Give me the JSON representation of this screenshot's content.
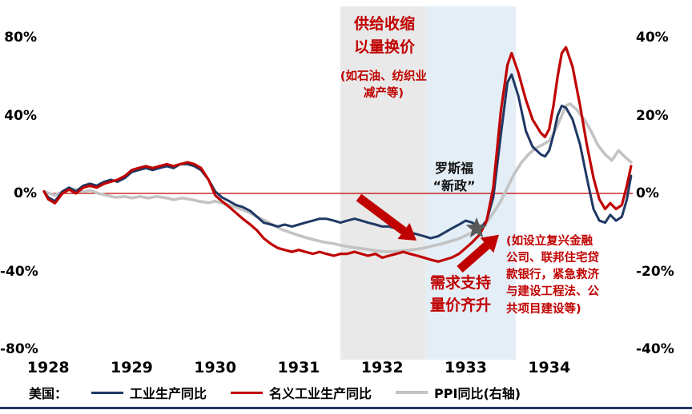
{
  "chart_data": {
    "type": "line",
    "x_axis": {
      "ticks": [
        1928,
        1929,
        1930,
        1931,
        1932,
        1933,
        1934
      ],
      "range": [
        1927.95,
        1935.0
      ]
    },
    "y_axis_left": {
      "tick_labels": [
        "80%",
        "40%",
        "0%",
        "-40%",
        "-80%"
      ],
      "tick_values": [
        80,
        40,
        0,
        -40,
        -80
      ],
      "range": [
        -80,
        80
      ]
    },
    "y_axis_right": {
      "tick_labels": [
        "40%",
        "20%",
        "0%",
        "-20%",
        "-40%"
      ],
      "tick_values": [
        40,
        20,
        0,
        -20,
        -40
      ],
      "range": [
        -40,
        40
      ]
    },
    "zero_line_color": "#C00000",
    "bands": [
      {
        "from": 1931.5,
        "to": 1932.52,
        "color": "#E9E9E9"
      },
      {
        "from": 1932.52,
        "to": 1933.6,
        "color": "#E4EEF6"
      }
    ],
    "series": [
      {
        "name": "工业生产同比",
        "axis": "left",
        "color": "#1F3864",
        "width": 3,
        "points": [
          [
            1927.95,
            1
          ],
          [
            1928,
            -2
          ],
          [
            1928.08,
            -4
          ],
          [
            1928.17,
            1
          ],
          [
            1928.25,
            3
          ],
          [
            1928.33,
            1
          ],
          [
            1928.42,
            4
          ],
          [
            1928.5,
            5
          ],
          [
            1928.58,
            4
          ],
          [
            1928.67,
            6
          ],
          [
            1928.75,
            7
          ],
          [
            1928.83,
            6
          ],
          [
            1928.92,
            8
          ],
          [
            1929,
            11
          ],
          [
            1929.08,
            12
          ],
          [
            1929.17,
            13
          ],
          [
            1929.25,
            12
          ],
          [
            1929.33,
            13
          ],
          [
            1929.42,
            14
          ],
          [
            1929.5,
            13
          ],
          [
            1929.58,
            15
          ],
          [
            1929.67,
            15
          ],
          [
            1929.75,
            14
          ],
          [
            1929.83,
            12
          ],
          [
            1929.92,
            7
          ],
          [
            1930,
            1
          ],
          [
            1930.08,
            -2
          ],
          [
            1930.17,
            -4
          ],
          [
            1930.25,
            -6
          ],
          [
            1930.33,
            -7
          ],
          [
            1930.42,
            -9
          ],
          [
            1930.5,
            -12
          ],
          [
            1930.58,
            -15
          ],
          [
            1930.67,
            -16
          ],
          [
            1930.75,
            -17
          ],
          [
            1930.83,
            -16
          ],
          [
            1930.92,
            -17
          ],
          [
            1931,
            -16
          ],
          [
            1931.08,
            -15
          ],
          [
            1931.17,
            -14
          ],
          [
            1931.25,
            -13
          ],
          [
            1931.33,
            -13
          ],
          [
            1931.42,
            -14
          ],
          [
            1931.5,
            -15
          ],
          [
            1931.58,
            -14
          ],
          [
            1931.67,
            -13
          ],
          [
            1931.75,
            -14
          ],
          [
            1931.83,
            -15
          ],
          [
            1931.92,
            -16
          ],
          [
            1932,
            -17
          ],
          [
            1932.08,
            -17
          ],
          [
            1932.17,
            -18
          ],
          [
            1932.25,
            -19
          ],
          [
            1932.33,
            -20
          ],
          [
            1932.42,
            -21
          ],
          [
            1932.5,
            -22
          ],
          [
            1932.58,
            -23
          ],
          [
            1932.67,
            -22
          ],
          [
            1932.75,
            -20
          ],
          [
            1932.83,
            -18
          ],
          [
            1932.92,
            -16
          ],
          [
            1933,
            -14
          ],
          [
            1933.08,
            -15
          ],
          [
            1933.17,
            -18
          ],
          [
            1933.25,
            -14
          ],
          [
            1933.33,
            -2
          ],
          [
            1933.42,
            30
          ],
          [
            1933.5,
            57
          ],
          [
            1933.55,
            61
          ],
          [
            1933.63,
            50
          ],
          [
            1933.72,
            32
          ],
          [
            1933.8,
            24
          ],
          [
            1933.9,
            20
          ],
          [
            1933.95,
            19
          ],
          [
            1934,
            22
          ],
          [
            1934.05,
            30
          ],
          [
            1934.1,
            40
          ],
          [
            1934.15,
            45
          ],
          [
            1934.2,
            44
          ],
          [
            1934.28,
            38
          ],
          [
            1934.37,
            25
          ],
          [
            1934.45,
            8
          ],
          [
            1934.53,
            -8
          ],
          [
            1934.6,
            -14
          ],
          [
            1934.67,
            -15
          ],
          [
            1934.73,
            -11
          ],
          [
            1934.8,
            -14
          ],
          [
            1934.87,
            -12
          ],
          [
            1934.93,
            -3
          ],
          [
            1934.98,
            9
          ]
        ]
      },
      {
        "name": "名义工业生产同比",
        "axis": "left",
        "color": "#C00000",
        "width": 3.2,
        "points": [
          [
            1927.95,
            1
          ],
          [
            1928,
            -3
          ],
          [
            1928.08,
            -5
          ],
          [
            1928.17,
            0
          ],
          [
            1928.25,
            2
          ],
          [
            1928.33,
            0
          ],
          [
            1928.42,
            3
          ],
          [
            1928.5,
            4
          ],
          [
            1928.58,
            3
          ],
          [
            1928.67,
            5
          ],
          [
            1928.75,
            6
          ],
          [
            1928.83,
            7
          ],
          [
            1928.92,
            9
          ],
          [
            1929,
            12
          ],
          [
            1929.08,
            13
          ],
          [
            1929.17,
            14
          ],
          [
            1929.25,
            13
          ],
          [
            1929.33,
            14
          ],
          [
            1929.42,
            15
          ],
          [
            1929.5,
            14
          ],
          [
            1929.58,
            15
          ],
          [
            1929.67,
            16
          ],
          [
            1929.75,
            15
          ],
          [
            1929.83,
            13
          ],
          [
            1929.92,
            7
          ],
          [
            1930,
            -1
          ],
          [
            1930.08,
            -4
          ],
          [
            1930.17,
            -7
          ],
          [
            1930.25,
            -10
          ],
          [
            1930.33,
            -13
          ],
          [
            1930.42,
            -16
          ],
          [
            1930.5,
            -19
          ],
          [
            1930.58,
            -23
          ],
          [
            1930.67,
            -26
          ],
          [
            1930.75,
            -28
          ],
          [
            1930.83,
            -29
          ],
          [
            1930.92,
            -30
          ],
          [
            1931,
            -29
          ],
          [
            1931.08,
            -30
          ],
          [
            1931.17,
            -31
          ],
          [
            1931.25,
            -30
          ],
          [
            1931.33,
            -31
          ],
          [
            1931.42,
            -32
          ],
          [
            1931.5,
            -31
          ],
          [
            1931.58,
            -31
          ],
          [
            1931.67,
            -30
          ],
          [
            1931.75,
            -31
          ],
          [
            1931.83,
            -32
          ],
          [
            1931.92,
            -31
          ],
          [
            1932,
            -33
          ],
          [
            1932.08,
            -32
          ],
          [
            1932.17,
            -31
          ],
          [
            1932.25,
            -30
          ],
          [
            1932.33,
            -31
          ],
          [
            1932.42,
            -32
          ],
          [
            1932.5,
            -33
          ],
          [
            1932.58,
            -34
          ],
          [
            1932.67,
            -35
          ],
          [
            1932.75,
            -34
          ],
          [
            1932.83,
            -33
          ],
          [
            1932.92,
            -31
          ],
          [
            1933,
            -28
          ],
          [
            1933.08,
            -25
          ],
          [
            1933.17,
            -21
          ],
          [
            1933.25,
            -14
          ],
          [
            1933.33,
            3
          ],
          [
            1933.42,
            42
          ],
          [
            1933.5,
            66
          ],
          [
            1933.55,
            72
          ],
          [
            1933.63,
            62
          ],
          [
            1933.72,
            48
          ],
          [
            1933.8,
            38
          ],
          [
            1933.9,
            31
          ],
          [
            1933.95,
            29
          ],
          [
            1934,
            33
          ],
          [
            1934.05,
            45
          ],
          [
            1934.1,
            60
          ],
          [
            1934.15,
            72
          ],
          [
            1934.2,
            75
          ],
          [
            1934.28,
            65
          ],
          [
            1934.37,
            45
          ],
          [
            1934.45,
            25
          ],
          [
            1934.53,
            8
          ],
          [
            1934.6,
            -3
          ],
          [
            1934.67,
            -8
          ],
          [
            1934.73,
            -5
          ],
          [
            1934.8,
            -8
          ],
          [
            1934.87,
            -6
          ],
          [
            1934.93,
            4
          ],
          [
            1934.98,
            14
          ]
        ]
      },
      {
        "name": "PPI同比(右轴)",
        "axis": "right",
        "color": "#C3C3C3",
        "width": 3.6,
        "points": [
          [
            1927.95,
            0.5
          ],
          [
            1928.08,
            -0.5
          ],
          [
            1928.2,
            0.8
          ],
          [
            1928.3,
            1.2
          ],
          [
            1928.42,
            0.4
          ],
          [
            1928.5,
            0.8
          ],
          [
            1928.6,
            0
          ],
          [
            1928.7,
            -0.5
          ],
          [
            1928.8,
            -1
          ],
          [
            1928.92,
            -0.8
          ],
          [
            1929,
            -1.2
          ],
          [
            1929.1,
            -0.8
          ],
          [
            1929.2,
            -1.2
          ],
          [
            1929.3,
            -0.8
          ],
          [
            1929.42,
            -1.2
          ],
          [
            1929.5,
            -1.6
          ],
          [
            1929.6,
            -1.2
          ],
          [
            1929.7,
            -1.5
          ],
          [
            1929.8,
            -2
          ],
          [
            1929.92,
            -2.4
          ],
          [
            1930,
            -2
          ],
          [
            1930.1,
            -2.6
          ],
          [
            1930.2,
            -3.2
          ],
          [
            1930.3,
            -4
          ],
          [
            1930.42,
            -5
          ],
          [
            1930.5,
            -6
          ],
          [
            1930.6,
            -7
          ],
          [
            1930.7,
            -8.2
          ],
          [
            1930.8,
            -9.3
          ],
          [
            1930.92,
            -10.2
          ],
          [
            1931,
            -10.8
          ],
          [
            1931.1,
            -11.4
          ],
          [
            1931.2,
            -12
          ],
          [
            1931.3,
            -12.5
          ],
          [
            1931.42,
            -12.9
          ],
          [
            1931.5,
            -13.3
          ],
          [
            1931.6,
            -13.7
          ],
          [
            1931.7,
            -14
          ],
          [
            1931.8,
            -14.3
          ],
          [
            1931.92,
            -14.7
          ],
          [
            1932,
            -14.9
          ],
          [
            1932.1,
            -15
          ],
          [
            1932.2,
            -14.8
          ],
          [
            1932.3,
            -14.6
          ],
          [
            1932.42,
            -14.3
          ],
          [
            1932.5,
            -14
          ],
          [
            1932.6,
            -13.5
          ],
          [
            1932.7,
            -13
          ],
          [
            1932.8,
            -12.4
          ],
          [
            1932.92,
            -11.6
          ],
          [
            1933,
            -10.8
          ],
          [
            1933.08,
            -10
          ],
          [
            1933.17,
            -9
          ],
          [
            1933.25,
            -7.5
          ],
          [
            1933.33,
            -5
          ],
          [
            1933.42,
            -2
          ],
          [
            1933.5,
            1.5
          ],
          [
            1933.58,
            5
          ],
          [
            1933.67,
            8
          ],
          [
            1933.75,
            10
          ],
          [
            1933.83,
            11.5
          ],
          [
            1933.92,
            12.5
          ],
          [
            1934,
            13.5
          ],
          [
            1934.08,
            16.5
          ],
          [
            1934.15,
            20
          ],
          [
            1934.2,
            22.5
          ],
          [
            1934.25,
            23
          ],
          [
            1934.33,
            21.5
          ],
          [
            1934.42,
            19
          ],
          [
            1934.5,
            16
          ],
          [
            1934.58,
            12.5
          ],
          [
            1934.67,
            10
          ],
          [
            1934.75,
            8.5
          ],
          [
            1934.83,
            11
          ],
          [
            1934.9,
            9.5
          ],
          [
            1934.98,
            8
          ]
        ]
      }
    ],
    "event_marker": {
      "shape": "star",
      "color": "#595959",
      "x": 1933.13,
      "y_left": -18
    },
    "arrow_color": "#C00000"
  },
  "annotations": {
    "supply_title": "供给收缩\n以量换价",
    "supply_detail": "(如石油、纺织业减产等)",
    "roosevelt": "罗斯福\n“新政”",
    "demand": "需求支持\n量价齐升",
    "policy_detail": "(如设立复兴金融公司、联邦住宅贷款银行，紧急救济与建设工程法、公共项目建设等)"
  },
  "legend": {
    "prefix": "美国：",
    "items": [
      {
        "label": "工业生产同比",
        "color": "#1F3864"
      },
      {
        "label": "名义工业生产同比",
        "color": "#C00000"
      },
      {
        "label": "PPI同比(右轴)",
        "color": "#C3C3C3"
      }
    ]
  },
  "page": {
    "bottom_bar_color": "#1F3864"
  }
}
